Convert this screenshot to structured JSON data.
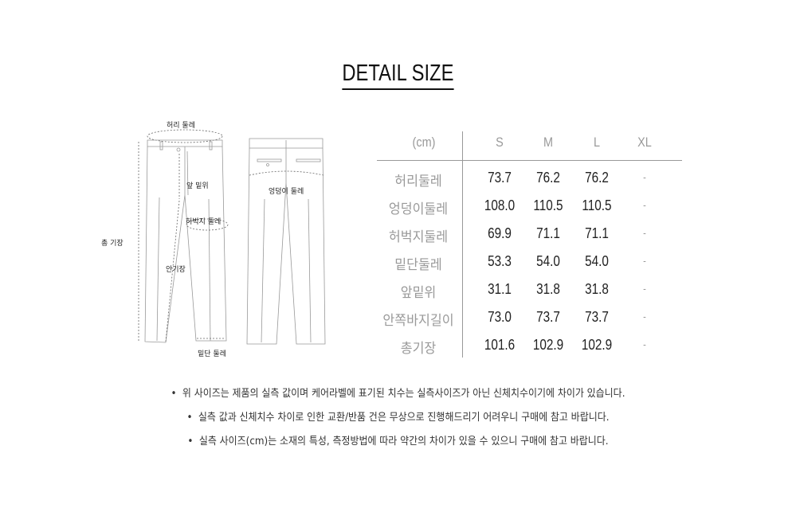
{
  "title": "DETAIL SIZE",
  "diagram": {
    "labels": {
      "waist": "허리 둘레",
      "front_rise": "앞 밑위",
      "thigh": "허벅지 둘레",
      "total_length": "총 기장",
      "inseam": "안기장",
      "hem": "밑단 둘레",
      "hip": "엉덩이 둘레"
    }
  },
  "size_table": {
    "unit": "(cm)",
    "columns": [
      "S",
      "M",
      "L",
      "XL"
    ],
    "rows": [
      {
        "label": "허리둘레",
        "values": [
          "73.7",
          "76.2",
          "76.2",
          "-"
        ]
      },
      {
        "label": "엉덩이둘레",
        "values": [
          "108.0",
          "110.5",
          "110.5",
          "-"
        ]
      },
      {
        "label": "허벅지둘레",
        "values": [
          "69.9",
          "71.1",
          "71.1",
          "-"
        ]
      },
      {
        "label": "밑단둘레",
        "values": [
          "53.3",
          "54.0",
          "54.0",
          "-"
        ]
      },
      {
        "label": "앞밑위",
        "values": [
          "31.1",
          "31.8",
          "31.8",
          "-"
        ]
      },
      {
        "label": "안쪽바지길이",
        "values": [
          "73.0",
          "73.7",
          "73.7",
          "-"
        ]
      },
      {
        "label": "총기장",
        "values": [
          "101.6",
          "102.9",
          "102.9",
          "-"
        ]
      }
    ]
  },
  "notes": [
    "위 사이즈는 제품의 실측 값이며 케어라벨에 표기된 치수는 실측사이즈가 아닌  신체치수이기에 차이가 있습니다.",
    "실측 값과 신체치수 차이로 인한 교환/반품 건은 무상으로 진행해드리기 어려우니 구매에 참고 바랍니다.",
    "실측 사이즈(cm)는 소재의 특성, 측정방법에 따라 약간의 차이가 있을 수 있으니 구매에 참고 바랍니다."
  ],
  "bullet": "•"
}
